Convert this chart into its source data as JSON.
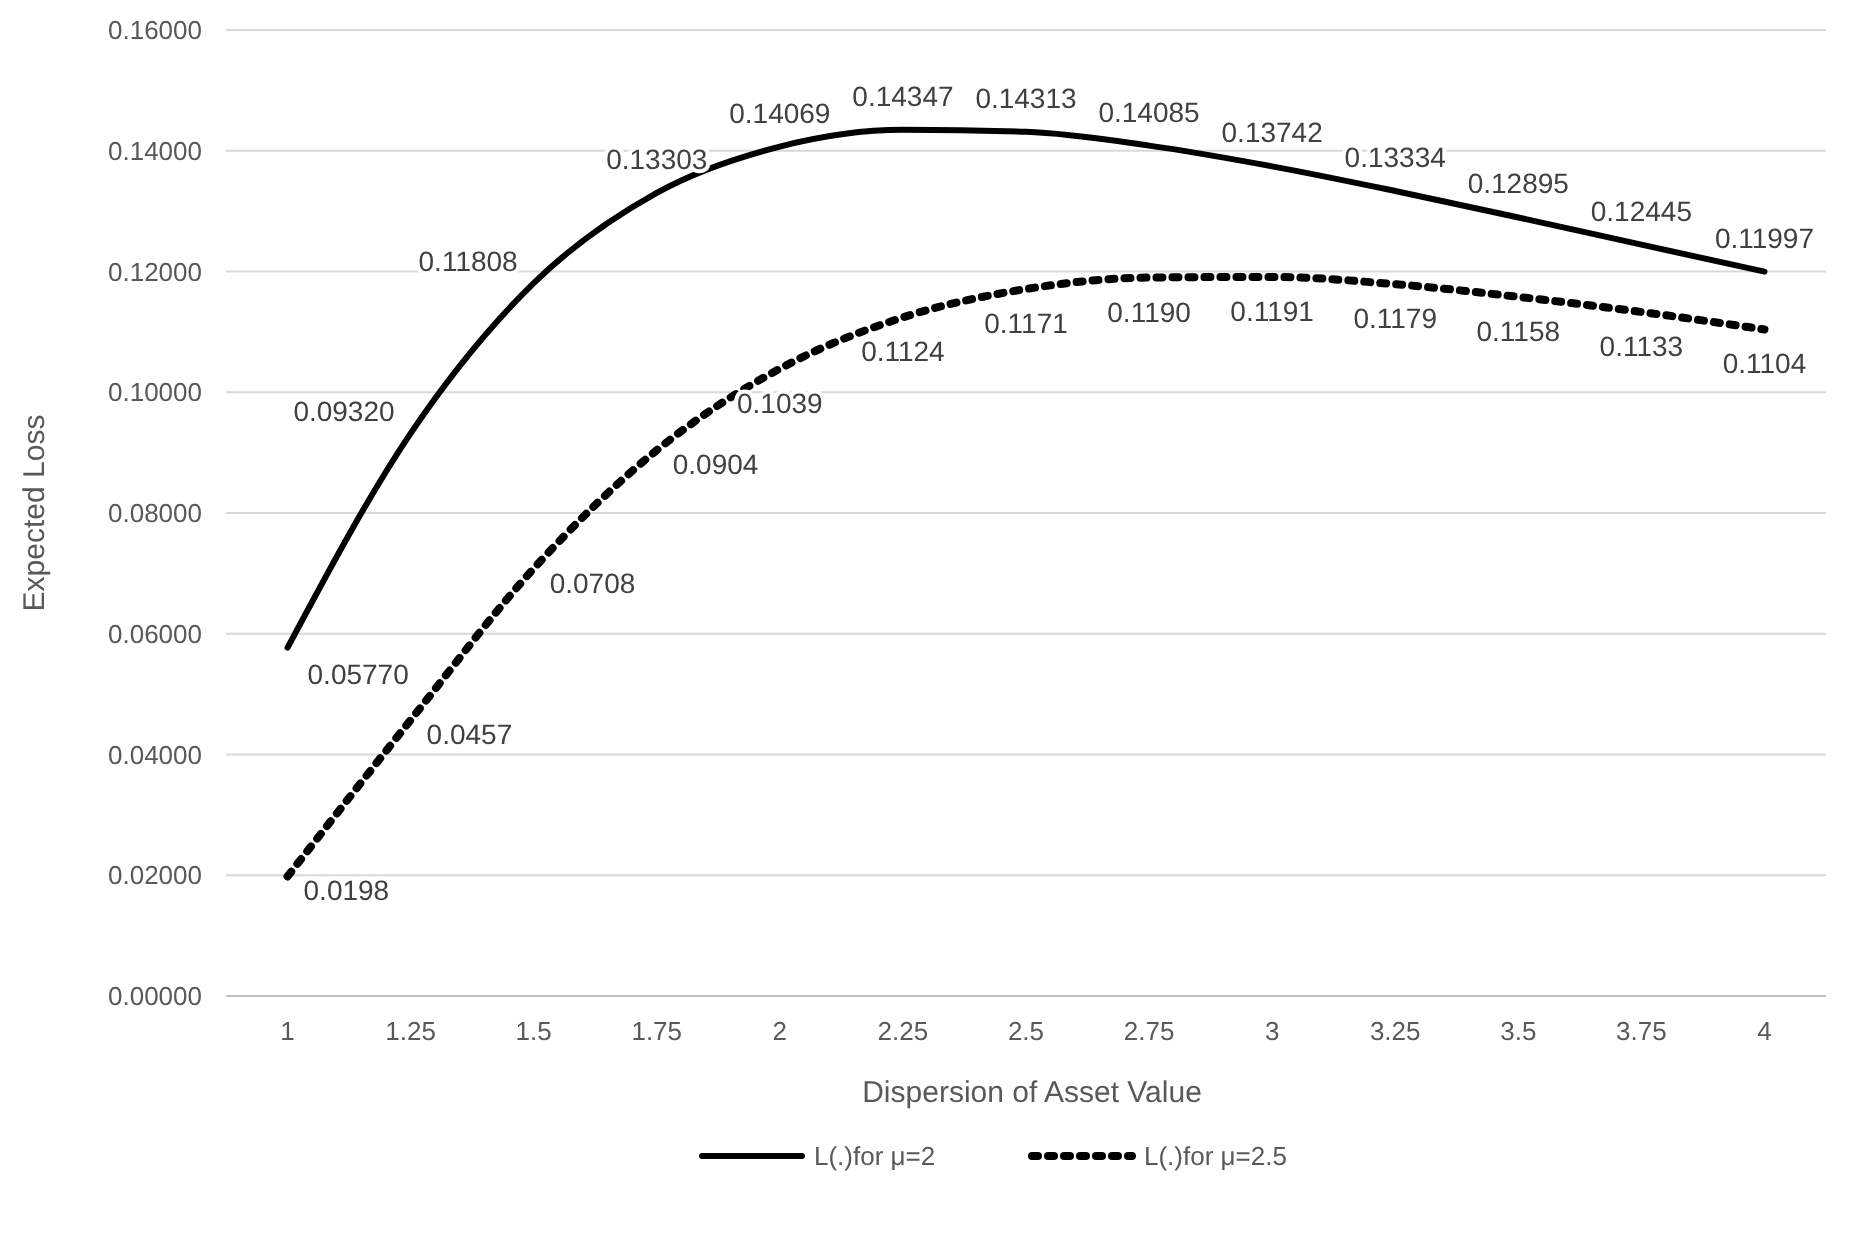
{
  "chart_data": {
    "type": "line",
    "xlabel": "Dispersion of Asset Value",
    "ylabel": "Expected Loss",
    "categories": [
      "1",
      "1.25",
      "1.5",
      "1.75",
      "2",
      "2.25",
      "2.5",
      "2.75",
      "3",
      "3.25",
      "3.5",
      "3.75",
      "4"
    ],
    "ylim": [
      0,
      0.16
    ],
    "yticks": [
      {
        "value": 0,
        "label": "0.00000"
      },
      {
        "value": 0.02,
        "label": "0.02000"
      },
      {
        "value": 0.04,
        "label": "0.04000"
      },
      {
        "value": 0.06,
        "label": "0.06000"
      },
      {
        "value": 0.08,
        "label": "0.08000"
      },
      {
        "value": 0.1,
        "label": "0.10000"
      },
      {
        "value": 0.12,
        "label": "0.12000"
      },
      {
        "value": 0.14,
        "label": "0.14000"
      },
      {
        "value": 0.16,
        "label": "0.16000"
      }
    ],
    "grid": "y",
    "legend": "bottom",
    "marker": "none",
    "series": [
      {
        "name": "L(.)for μ=2",
        "color": "#000000",
        "line_style": "solid",
        "values": [
          0.0577,
          0.0932,
          0.11808,
          0.13303,
          0.14069,
          0.14347,
          0.14313,
          0.14085,
          0.13742,
          0.13334,
          0.12895,
          0.12445,
          0.11997
        ],
        "value_labels": [
          "0.05770",
          "0.09320",
          "0.11808",
          "0.13303",
          "0.14069",
          "0.14347",
          "0.14313",
          "0.14085",
          "0.13742",
          "0.13334",
          "0.12895",
          "0.12445",
          "0.11997"
        ]
      },
      {
        "name": "L(.)for μ=2.5",
        "color": "#000000",
        "line_style": "dotted",
        "values": [
          0.0198,
          0.0457,
          0.0708,
          0.0904,
          0.1039,
          0.1124,
          0.1171,
          0.119,
          0.1191,
          0.1179,
          0.1158,
          0.1133,
          0.1104
        ],
        "value_labels": [
          "0.0198",
          "0.0457",
          "0.0708",
          "0.0904",
          "0.1039",
          "0.1124",
          "0.1171",
          "0.1190",
          "0.1191",
          "0.1179",
          "0.1158",
          "0.1133",
          "0.1104"
        ]
      }
    ]
  }
}
